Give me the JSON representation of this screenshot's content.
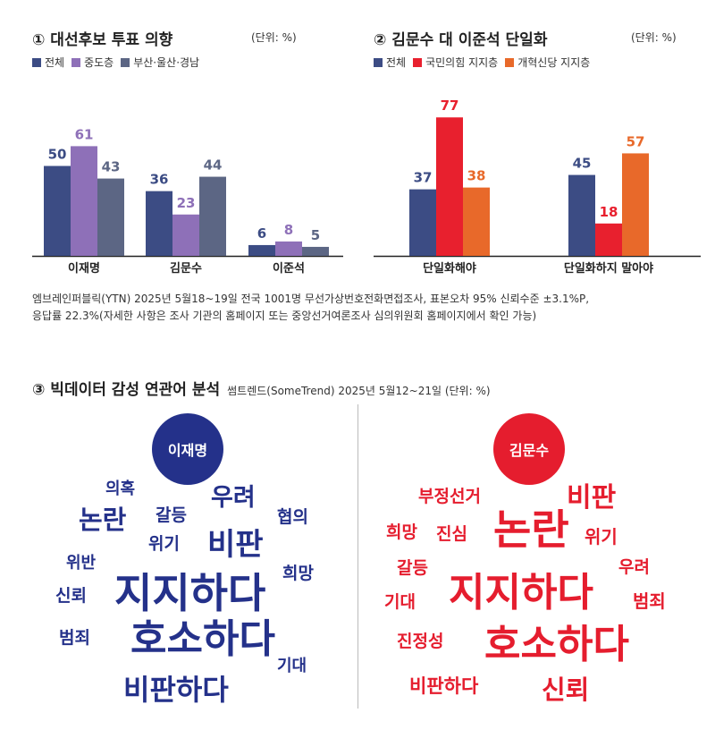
{
  "chart_data": [
    {
      "type": "bar",
      "title": "① 대선후보 투표 의향",
      "unit": "(단위: %)",
      "categories": [
        "이재명",
        "김문수",
        "이준석"
      ],
      "series": [
        {
          "name": "전체",
          "color": "#3c4c84",
          "values": [
            50,
            36,
            6
          ]
        },
        {
          "name": "중도층",
          "color": "#8e70b8",
          "values": [
            61,
            23,
            8
          ]
        },
        {
          "name": "부산·울산·경남",
          "color": "#5c6684",
          "values": [
            43,
            44,
            5
          ]
        }
      ],
      "ylim": [
        0,
        100
      ]
    },
    {
      "type": "bar",
      "title": "② 김문수 대 이준석 단일화",
      "unit": "(단위: %)",
      "categories": [
        "단일화해야",
        "단일화하지 말아야"
      ],
      "series": [
        {
          "name": "전체",
          "color": "#3c4c84",
          "values": [
            37,
            45
          ]
        },
        {
          "name": "국민의힘 지지층",
          "color": "#e8202e",
          "values": [
            77,
            18
          ]
        },
        {
          "name": "개혁신당 지지층",
          "color": "#e8692a",
          "values": [
            38,
            57
          ]
        }
      ],
      "ylim": [
        0,
        100
      ]
    }
  ],
  "note": {
    "line1": "엠브레인퍼블릭(YTN) 2025년 5월18~19일 전국 1001명 무선가상번호전화면접조사, 표본오차 95% 신뢰수준 ±3.1%P,",
    "line2": "응답률 22.3%(자세한 사항은 조사 기관의 홈페이지 또는 중앙선거여론조사 심의위원회 홈페이지에서 확인 가능)"
  },
  "section3": {
    "title": "③ 빅데이터 감성 연관어 분석",
    "subtitle": "썸트렌드(SomeTrend) 2025년 5월12~21일 (단위: %)"
  },
  "wordclouds": [
    {
      "candidate": "이재명",
      "color": "#24318a",
      "words": [
        "의혹",
        "논란",
        "갈등",
        "우려",
        "협의",
        "위기",
        "비판",
        "위반",
        "희망",
        "신뢰",
        "지지하다",
        "범죄",
        "호소하다",
        "기대",
        "비판하다"
      ]
    },
    {
      "candidate": "김문수",
      "color": "#e51d2e",
      "words": [
        "부정선거",
        "비판",
        "희망",
        "진심",
        "논란",
        "위기",
        "갈등",
        "우려",
        "기대",
        "지지하다",
        "범죄",
        "진정성",
        "호소하다",
        "비판하다",
        "신뢰"
      ]
    }
  ]
}
